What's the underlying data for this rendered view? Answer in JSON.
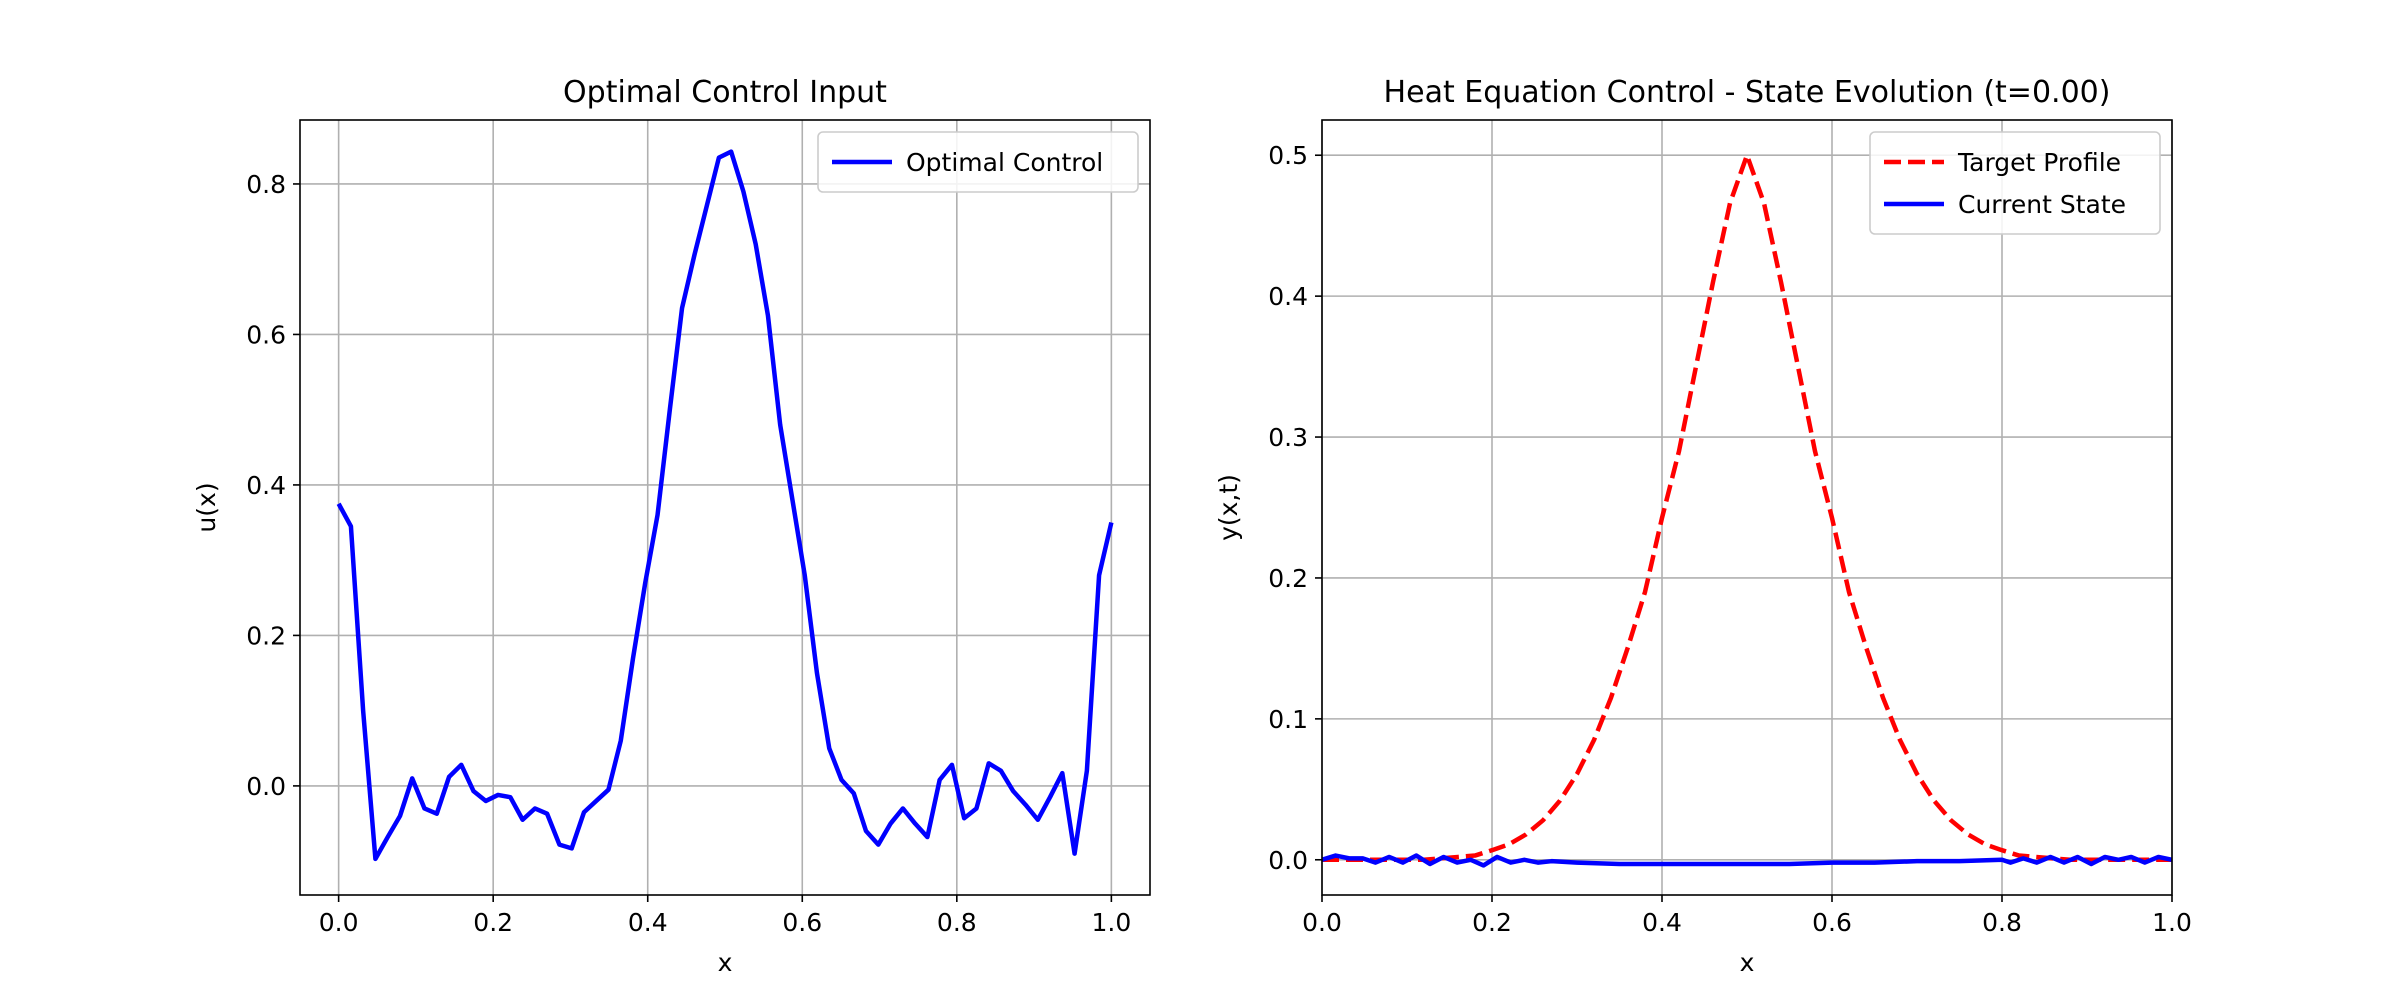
{
  "chart_data": [
    {
      "type": "line",
      "title": "Optimal Control Input",
      "xlabel": "x",
      "ylabel": "u(x)",
      "xlim": [
        -0.05,
        1.05
      ],
      "ylim": [
        -0.145,
        0.885
      ],
      "xticks": [
        "0.0",
        "0.2",
        "0.4",
        "0.6",
        "0.8",
        "1.0"
      ],
      "yticks": [
        "0.0",
        "0.2",
        "0.4",
        "0.6",
        "0.8"
      ],
      "grid": true,
      "legend_position": "top-right",
      "series": [
        {
          "name": "Optimal Control",
          "color": "#0000ff",
          "style": "solid",
          "x": [
            0.0,
            0.0159,
            0.0317,
            0.0476,
            0.0635,
            0.0794,
            0.0952,
            0.1111,
            0.127,
            0.1429,
            0.1587,
            0.1746,
            0.1905,
            0.2063,
            0.2222,
            0.2381,
            0.254,
            0.2698,
            0.2857,
            0.3016,
            0.3175,
            0.3333,
            0.3492,
            0.3651,
            0.381,
            0.3968,
            0.4127,
            0.4286,
            0.4444,
            0.4603,
            0.4762,
            0.4921,
            0.5079,
            0.5238,
            0.5397,
            0.5556,
            0.5714,
            0.5873,
            0.6032,
            0.619,
            0.6349,
            0.6508,
            0.6667,
            0.6825,
            0.6984,
            0.7143,
            0.7302,
            0.746,
            0.7619,
            0.7778,
            0.7937,
            0.8095,
            0.8254,
            0.8413,
            0.8571,
            0.873,
            0.8889,
            0.9048,
            0.9206,
            0.9365,
            0.9524,
            0.9683,
            0.9841,
            1.0
          ],
          "y": [
            0.375,
            0.345,
            0.1,
            -0.097,
            -0.068,
            -0.04,
            0.01,
            -0.03,
            -0.037,
            0.012,
            0.028,
            -0.007,
            -0.02,
            -0.012,
            -0.015,
            -0.045,
            -0.03,
            -0.037,
            -0.078,
            -0.083,
            -0.035,
            -0.02,
            -0.005,
            0.06,
            0.17,
            0.27,
            0.36,
            0.5,
            0.635,
            0.705,
            0.77,
            0.835,
            0.843,
            0.79,
            0.72,
            0.625,
            0.48,
            0.38,
            0.28,
            0.15,
            0.05,
            0.008,
            -0.01,
            -0.06,
            -0.078,
            -0.05,
            -0.03,
            -0.05,
            -0.068,
            0.008,
            0.028,
            -0.043,
            -0.03,
            0.03,
            0.02,
            -0.007,
            -0.025,
            -0.045,
            -0.015,
            0.017,
            -0.09,
            0.02,
            0.28,
            0.35
          ]
        }
      ]
    },
    {
      "type": "line",
      "title": "Heat Equation Control - State Evolution (t=0.00)",
      "xlabel": "x",
      "ylabel": "y(x,t)",
      "xlim": [
        0.0,
        1.0
      ],
      "ylim": [
        -0.025,
        0.525
      ],
      "xticks": [
        "0.0",
        "0.2",
        "0.4",
        "0.6",
        "0.8",
        "1.0"
      ],
      "yticks": [
        "0.0",
        "0.1",
        "0.2",
        "0.3",
        "0.4",
        "0.5"
      ],
      "grid": true,
      "legend_position": "top-right",
      "series": [
        {
          "name": "Target Profile",
          "color": "#ff0000",
          "style": "dashed",
          "x": [
            0.0,
            0.02,
            0.04,
            0.06,
            0.08,
            0.1,
            0.12,
            0.14,
            0.16,
            0.18,
            0.2,
            0.22,
            0.24,
            0.26,
            0.28,
            0.3,
            0.32,
            0.34,
            0.36,
            0.38,
            0.4,
            0.42,
            0.44,
            0.46,
            0.48,
            0.5,
            0.52,
            0.54,
            0.56,
            0.58,
            0.6,
            0.62,
            0.64,
            0.66,
            0.68,
            0.7,
            0.72,
            0.74,
            0.76,
            0.78,
            0.8,
            0.82,
            0.84,
            0.86,
            0.88,
            0.9,
            0.92,
            0.94,
            0.96,
            0.98,
            1.0
          ],
          "y": [
            0.0,
            0.0,
            0.0,
            0.0,
            0.0,
            0.0,
            0.0,
            0.001,
            0.002,
            0.003,
            0.0068,
            0.011,
            0.018,
            0.028,
            0.042,
            0.0609,
            0.085,
            0.115,
            0.151,
            0.19,
            0.2426,
            0.29,
            0.35,
            0.41,
            0.466,
            0.5,
            0.466,
            0.41,
            0.35,
            0.29,
            0.2426,
            0.19,
            0.151,
            0.115,
            0.085,
            0.0609,
            0.042,
            0.028,
            0.018,
            0.011,
            0.0068,
            0.003,
            0.002,
            0.001,
            0.0,
            0.0,
            0.0,
            0.0,
            0.0,
            0.0,
            0.0
          ]
        },
        {
          "name": "Current State",
          "color": "#0000ff",
          "style": "solid",
          "x": [
            0.0,
            0.016,
            0.032,
            0.048,
            0.063,
            0.079,
            0.095,
            0.111,
            0.127,
            0.143,
            0.159,
            0.175,
            0.19,
            0.206,
            0.222,
            0.238,
            0.254,
            0.27,
            0.3,
            0.35,
            0.4,
            0.45,
            0.5,
            0.55,
            0.6,
            0.65,
            0.7,
            0.75,
            0.8,
            0.81,
            0.825,
            0.841,
            0.857,
            0.873,
            0.889,
            0.905,
            0.921,
            0.937,
            0.952,
            0.968,
            0.984,
            1.0
          ],
          "y": [
            0.0,
            0.003,
            0.001,
            0.001,
            -0.002,
            0.002,
            -0.002,
            0.003,
            -0.003,
            0.002,
            -0.002,
            0.0,
            -0.004,
            0.002,
            -0.002,
            0.0,
            -0.002,
            -0.001,
            -0.002,
            -0.003,
            -0.003,
            -0.003,
            -0.003,
            -0.003,
            -0.002,
            -0.002,
            -0.001,
            -0.001,
            0.0,
            -0.002,
            0.001,
            -0.002,
            0.002,
            -0.002,
            0.002,
            -0.003,
            0.002,
            0.0,
            0.002,
            -0.002,
            0.002,
            0.0
          ]
        }
      ]
    }
  ]
}
